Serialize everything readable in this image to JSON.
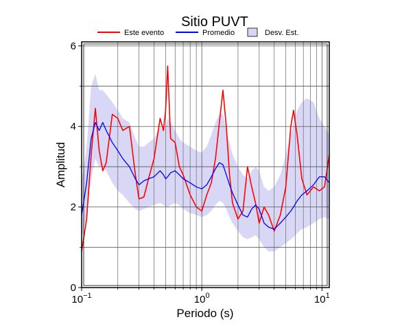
{
  "chart_data": {
    "type": "line",
    "title": "Sitio PUVT",
    "xlabel": "Periodo (s)",
    "ylabel": "Amplitud",
    "xscale": "log",
    "xlim": [
      0.1,
      11.5
    ],
    "ylim": [
      0,
      6.1
    ],
    "grid": true,
    "legend_position": "top",
    "x_tick_labels": [
      {
        "base": "10",
        "exp": "−1"
      },
      {
        "base": "10",
        "exp": "0"
      },
      {
        "base": "10",
        "exp": "1"
      }
    ],
    "y_ticks": [
      0,
      2,
      4,
      6
    ],
    "legend": [
      {
        "label": "Este evento",
        "kind": "line",
        "color": "#ff0000"
      },
      {
        "label": "Promedio",
        "kind": "line",
        "color": "#0000ff"
      },
      {
        "label": "Desv. Est.",
        "kind": "box",
        "color": "#d8d8f6"
      }
    ],
    "x": [
      0.1,
      0.11,
      0.12,
      0.13,
      0.14,
      0.15,
      0.16,
      0.18,
      0.2,
      0.22,
      0.25,
      0.28,
      0.3,
      0.33,
      0.36,
      0.4,
      0.45,
      0.48,
      0.5,
      0.52,
      0.55,
      0.6,
      0.65,
      0.7,
      0.8,
      0.9,
      1.0,
      1.1,
      1.2,
      1.3,
      1.4,
      1.5,
      1.6,
      1.7,
      1.8,
      2.0,
      2.2,
      2.4,
      2.6,
      2.8,
      3.0,
      3.3,
      3.6,
      4.0,
      4.5,
      5.0,
      5.5,
      5.8,
      6.2,
      6.8,
      7.5,
      8.5,
      9.5,
      10.5,
      11.5
    ],
    "series": [
      {
        "name": "Este evento",
        "color": "#ff0000",
        "values": [
          0.9,
          1.7,
          3.3,
          4.45,
          3.4,
          2.9,
          3.1,
          4.3,
          4.2,
          3.9,
          4.0,
          2.8,
          2.2,
          2.25,
          2.7,
          3.2,
          4.2,
          3.9,
          4.4,
          5.5,
          3.7,
          3.6,
          3.0,
          2.8,
          2.3,
          2.0,
          1.9,
          2.3,
          2.6,
          3.2,
          4.1,
          4.9,
          4.0,
          2.8,
          2.1,
          1.7,
          1.9,
          3.0,
          2.5,
          2.1,
          1.6,
          2.0,
          1.8,
          1.4,
          1.8,
          2.5,
          4.0,
          4.4,
          3.8,
          2.7,
          2.3,
          2.5,
          2.4,
          2.5,
          3.3
        ]
      },
      {
        "name": "Promedio",
        "color": "#0000ff",
        "values": [
          1.8,
          2.6,
          3.7,
          4.1,
          3.9,
          4.1,
          3.9,
          3.6,
          3.4,
          3.2,
          3.0,
          2.7,
          2.55,
          2.65,
          2.7,
          2.75,
          2.9,
          2.8,
          2.7,
          2.75,
          2.85,
          2.9,
          2.8,
          2.7,
          2.6,
          2.5,
          2.45,
          2.55,
          2.75,
          2.95,
          3.1,
          3.05,
          2.8,
          2.55,
          2.35,
          2.05,
          1.8,
          1.75,
          1.95,
          2.05,
          1.95,
          1.6,
          1.5,
          1.45,
          1.6,
          1.75,
          1.9,
          2.0,
          2.15,
          2.3,
          2.4,
          2.55,
          2.75,
          2.75,
          2.6
        ]
      },
      {
        "name": "Desv. Est.",
        "kind": "band",
        "color": "#d8d8f6",
        "lower": [
          1.2,
          1.8,
          2.7,
          3.2,
          3.0,
          3.0,
          2.9,
          2.6,
          2.4,
          2.3,
          2.1,
          1.95,
          1.9,
          1.95,
          2.0,
          2.05,
          2.1,
          2.05,
          2.0,
          2.0,
          2.05,
          2.1,
          2.05,
          1.95,
          1.85,
          1.8,
          1.75,
          1.8,
          1.9,
          2.05,
          2.15,
          2.1,
          1.95,
          1.75,
          1.6,
          1.4,
          1.25,
          1.2,
          1.25,
          1.3,
          1.2,
          1.0,
          0.9,
          0.9,
          1.0,
          1.1,
          1.2,
          1.25,
          1.35,
          1.45,
          1.5,
          1.6,
          1.7,
          1.75,
          1.7
        ],
        "upper": [
          2.6,
          3.5,
          5.0,
          5.3,
          4.9,
          4.9,
          4.8,
          4.6,
          4.4,
          4.2,
          4.1,
          3.7,
          3.5,
          3.5,
          3.6,
          3.7,
          4.0,
          3.9,
          4.0,
          4.2,
          4.1,
          3.9,
          3.7,
          3.6,
          3.5,
          3.4,
          3.35,
          3.5,
          3.8,
          4.1,
          4.3,
          4.3,
          3.9,
          3.6,
          3.3,
          3.0,
          2.8,
          2.7,
          2.9,
          3.0,
          2.9,
          2.5,
          2.4,
          2.5,
          2.8,
          3.3,
          3.8,
          4.1,
          4.4,
          4.6,
          4.7,
          4.6,
          4.2,
          4.0,
          3.8
        ]
      }
    ]
  }
}
